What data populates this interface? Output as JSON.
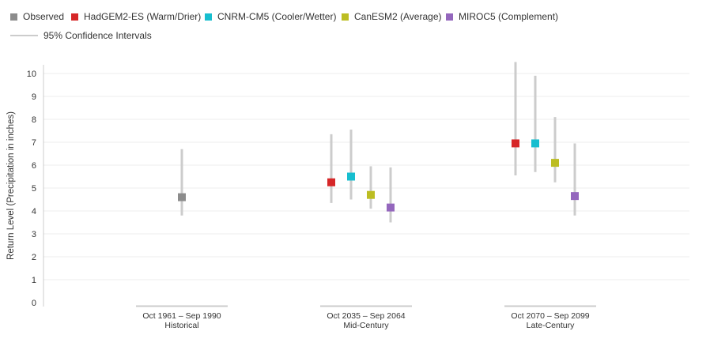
{
  "legend": {
    "items": [
      {
        "label": "Observed",
        "color": "#8c8c8c"
      },
      {
        "label": "HadGEM2-ES (Warm/Drier)",
        "color": "#d62728"
      },
      {
        "label": "CNRM-CM5 (Cooler/Wetter)",
        "color": "#17becf"
      },
      {
        "label": "CanESM2 (Average)",
        "color": "#bcbd22"
      },
      {
        "label": "MIROC5 (Complement)",
        "color": "#9467bd"
      }
    ],
    "ci_label": "95% Confidence Intervals",
    "ci_color": "#cccccc"
  },
  "chart_data": {
    "type": "scatter",
    "ylabel": "Return Level (Precipitation in inches)",
    "ylim": [
      0,
      10
    ],
    "yticks": [
      "0",
      "1",
      "2",
      "3",
      "4",
      "5",
      "6",
      "7",
      "8",
      "9",
      "10"
    ],
    "grid": true,
    "categories": [
      {
        "period": "Oct 1961 – Sep 1990",
        "name": "Historical"
      },
      {
        "period": "Oct 2035 – Sep 2064",
        "name": "Mid-Century"
      },
      {
        "period": "Oct 2070 – Sep 2099",
        "name": "Late-Century"
      }
    ],
    "series": [
      {
        "name": "Observed",
        "color": "#8c8c8c",
        "points": [
          {
            "category": 0,
            "value": 4.6,
            "low": 3.8,
            "high": 6.7
          }
        ]
      },
      {
        "name": "HadGEM2-ES (Warm/Drier)",
        "color": "#d62728",
        "points": [
          {
            "category": 1,
            "value": 5.25,
            "low": 4.35,
            "high": 7.35
          },
          {
            "category": 2,
            "value": 6.95,
            "low": 5.55,
            "high": 10.5
          }
        ]
      },
      {
        "name": "CNRM-CM5 (Cooler/Wetter)",
        "color": "#17becf",
        "points": [
          {
            "category": 1,
            "value": 5.5,
            "low": 4.5,
            "high": 7.55
          },
          {
            "category": 2,
            "value": 6.95,
            "low": 5.7,
            "high": 9.9
          }
        ]
      },
      {
        "name": "CanESM2 (Average)",
        "color": "#bcbd22",
        "points": [
          {
            "category": 1,
            "value": 4.7,
            "low": 4.1,
            "high": 5.95
          },
          {
            "category": 2,
            "value": 6.1,
            "low": 5.25,
            "high": 8.1
          }
        ]
      },
      {
        "name": "MIROC5 (Complement)",
        "color": "#9467bd",
        "points": [
          {
            "category": 1,
            "value": 4.15,
            "low": 3.5,
            "high": 5.9
          },
          {
            "category": 2,
            "value": 4.65,
            "low": 3.8,
            "high": 6.95
          }
        ]
      }
    ]
  }
}
